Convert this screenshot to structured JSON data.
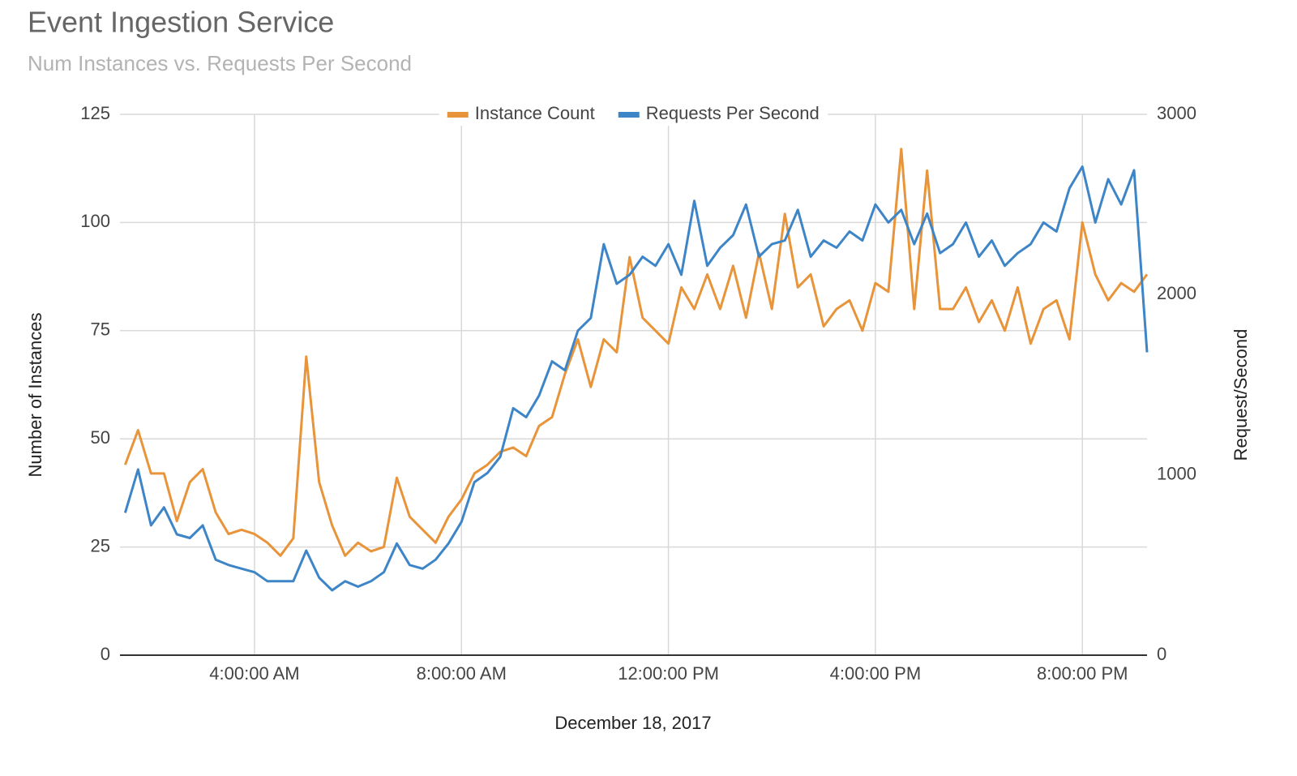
{
  "chart_data": {
    "type": "line",
    "title": "Event Ingestion Service",
    "subtitle": "Num Instances vs. Requests Per Second",
    "x_label": "December 18, 2017",
    "y_label": "Number of Instances",
    "y2_label": "Request/Second",
    "legend": "top",
    "grid": true,
    "x": [
      1.5,
      1.75,
      2,
      2.25,
      2.5,
      2.75,
      3,
      3.25,
      3.5,
      3.75,
      4,
      4.25,
      4.5,
      4.75,
      5,
      5.25,
      5.5,
      5.75,
      6,
      6.25,
      6.5,
      6.75,
      7,
      7.25,
      7.5,
      7.75,
      8,
      8.25,
      8.5,
      8.75,
      9,
      9.25,
      9.5,
      9.75,
      10,
      10.25,
      10.5,
      10.75,
      11,
      11.25,
      11.5,
      11.75,
      12,
      12.25,
      12.5,
      12.75,
      13,
      13.25,
      13.5,
      13.75,
      14,
      14.25,
      14.5,
      14.75,
      15,
      15.25,
      15.5,
      15.75,
      16,
      16.25,
      16.5,
      16.75,
      17,
      17.25,
      17.5,
      17.75,
      18,
      18.25,
      18.5,
      18.75,
      19,
      19.25,
      19.5,
      19.75,
      20,
      20.25,
      20.5,
      20.75,
      21,
      21.25
    ],
    "series": [
      {
        "name": "Instance Count",
        "color": "#e8943a",
        "axis": "y",
        "values": [
          44,
          52,
          42,
          42,
          31,
          40,
          43,
          33,
          28,
          29,
          28,
          26,
          23,
          27,
          69,
          40,
          30,
          23,
          26,
          24,
          25,
          41,
          32,
          29,
          26,
          32,
          36,
          42,
          44,
          47,
          48,
          46,
          53,
          55,
          65,
          73,
          62,
          73,
          70,
          92,
          78,
          75,
          72,
          85,
          80,
          88,
          80,
          90,
          78,
          93,
          80,
          102,
          85,
          88,
          76,
          80,
          82,
          75,
          86,
          84,
          117,
          80,
          112,
          80,
          80,
          85,
          77,
          82,
          75,
          85,
          72,
          80,
          82,
          73,
          100,
          88,
          82,
          86,
          84,
          88
        ]
      },
      {
        "name": "Requests Per Second",
        "color": "#3d85c6",
        "axis": "y2",
        "values": [
          790,
          1030,
          720,
          820,
          670,
          650,
          720,
          530,
          500,
          480,
          460,
          410,
          410,
          410,
          580,
          430,
          360,
          410,
          380,
          410,
          460,
          620,
          500,
          480,
          530,
          620,
          740,
          960,
          1010,
          1100,
          1370,
          1320,
          1440,
          1630,
          1580,
          1800,
          1870,
          2280,
          2060,
          2110,
          2210,
          2160,
          2280,
          2110,
          2520,
          2160,
          2260,
          2330,
          2500,
          2210,
          2280,
          2300,
          2470,
          2210,
          2300,
          2260,
          2350,
          2300,
          2500,
          2400,
          2470,
          2280,
          2450,
          2230,
          2280,
          2400,
          2210,
          2300,
          2160,
          2230,
          2280,
          2400,
          2350,
          2590,
          2710,
          2400,
          2640,
          2500,
          2690,
          1680
        ]
      }
    ],
    "xlim": [
      1.4,
      21.25
    ],
    "xticks": [
      {
        "value": 4,
        "label": "4:00:00 AM"
      },
      {
        "value": 8,
        "label": "8:00:00 AM"
      },
      {
        "value": 12,
        "label": "12:00:00 PM"
      },
      {
        "value": 16,
        "label": "4:00:00 PM"
      },
      {
        "value": 20,
        "label": "8:00:00 PM"
      }
    ],
    "ylim": [
      0,
      125
    ],
    "yticks": [
      0,
      25,
      50,
      75,
      100,
      125
    ],
    "y2lim": [
      0,
      3000
    ],
    "y2ticks": [
      0,
      1000,
      2000,
      3000
    ]
  }
}
